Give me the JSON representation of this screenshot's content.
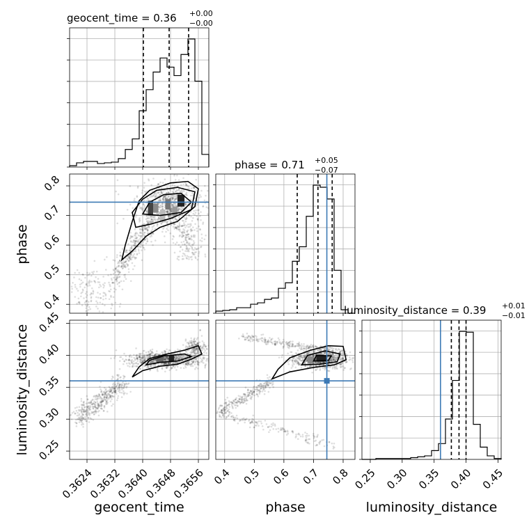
{
  "chart_data": {
    "type": "corner",
    "parameters": [
      "geocent_time",
      "phase",
      "luminosity_distance"
    ],
    "truths": {
      "phase": 0.745,
      "luminosity_distance": 0.36
    },
    "truth_color": "#3d7ab5",
    "grid": true,
    "titles": [
      {
        "param": "geocent_time",
        "text": "geocent_time = 0.36",
        "sup": "+0.00",
        "sub": "−0.00"
      },
      {
        "param": "phase",
        "text": "phase = 0.71",
        "sup": "+0.05",
        "sub": "−0.07"
      },
      {
        "param": "luminosity_distance",
        "text": "luminosity_distance = 0.39",
        "sup": "+0.01",
        "sub": "−0.01"
      }
    ],
    "axis_labels": {
      "x": [
        "geocent_time",
        "phase",
        "luminosity_distance"
      ],
      "y": [
        "phase",
        "luminosity_distance"
      ]
    },
    "ticks": {
      "geocent_time": [
        "0.3624",
        "0.3632",
        "0.3640",
        "0.3648",
        "0.3656"
      ],
      "phase": [
        "0.4",
        "0.5",
        "0.6",
        "0.7",
        "0.8"
      ],
      "luminosity_distance": [
        "0.25",
        "0.30",
        "0.35",
        "0.40",
        "0.45"
      ]
    },
    "ranges": {
      "geocent_time": [
        0.3619,
        0.3659
      ],
      "phase": [
        0.37,
        0.84
      ],
      "luminosity_distance": [
        0.237,
        0.455
      ]
    },
    "quantiles": {
      "geocent_time": [
        0.36402,
        0.36476,
        0.36532
      ],
      "phase": [
        0.645,
        0.715,
        0.763
      ],
      "luminosity_distance": [
        0.377,
        0.389,
        0.4
      ]
    },
    "histograms": {
      "geocent_time": {
        "bin_edges": [
          0.3619,
          0.3621,
          0.3623,
          0.3625,
          0.3627,
          0.3629,
          0.3631,
          0.3633,
          0.3635,
          0.3637,
          0.3639,
          0.3641,
          0.3643,
          0.3645,
          0.3647,
          0.3649,
          0.3651,
          0.3653,
          0.3655,
          0.3657,
          0.3659
        ],
        "counts": [
          2,
          6,
          8,
          8,
          5,
          6,
          7,
          12,
          25,
          40,
          80,
          110,
          135,
          155,
          142,
          130,
          160,
          182,
          122,
          18
        ]
      },
      "phase": {
        "bin_edges": [
          0.37,
          0.3935,
          0.417,
          0.4405,
          0.464,
          0.4875,
          0.511,
          0.5345,
          0.558,
          0.5815,
          0.605,
          0.6285,
          0.652,
          0.6755,
          0.699,
          0.7225,
          0.746,
          0.7695,
          0.793,
          0.8165,
          0.84
        ],
        "counts": [
          3,
          4,
          5,
          8,
          8,
          13,
          15,
          20,
          22,
          36,
          44,
          75,
          96,
          140,
          185,
          182,
          165,
          62,
          5,
          0
        ]
      },
      "luminosity_distance": {
        "bin_edges": [
          0.237,
          0.2479,
          0.2588,
          0.2697,
          0.2806,
          0.2915,
          0.3024,
          0.3133,
          0.3242,
          0.3351,
          0.346,
          0.3569,
          0.3678,
          0.3787,
          0.3896,
          0.4005,
          0.4114,
          0.4223,
          0.4332,
          0.4441,
          0.455
        ],
        "counts": [
          0,
          0,
          1,
          1,
          1,
          1,
          1,
          2,
          3,
          4,
          10,
          18,
          46,
          90,
          146,
          145,
          40,
          14,
          4,
          1
        ]
      }
    }
  }
}
